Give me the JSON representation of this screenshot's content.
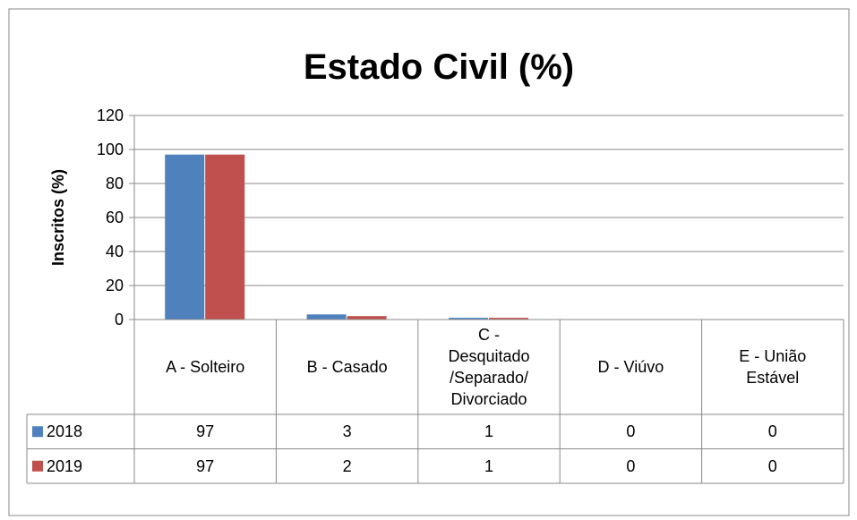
{
  "chart_data": {
    "type": "bar",
    "title": "Estado Civil (%)",
    "ylabel": "Inscritos (%)",
    "categories": [
      "A - Solteiro",
      "B - Casado",
      "C -\nDesquitado\n/Separado/\nDivorciado",
      "D - Viúvo",
      "E - União\nEstável"
    ],
    "series": [
      {
        "name": "2018",
        "color": "#4f81bd",
        "values": [
          97,
          3,
          1,
          0,
          0
        ]
      },
      {
        "name": "2019",
        "color": "#c0504d",
        "values": [
          97,
          2,
          1,
          0,
          0
        ]
      }
    ],
    "ylim": [
      0,
      120
    ],
    "yticks": [
      0,
      20,
      40,
      60,
      80,
      100,
      120
    ],
    "grid": true,
    "data_table": true
  }
}
